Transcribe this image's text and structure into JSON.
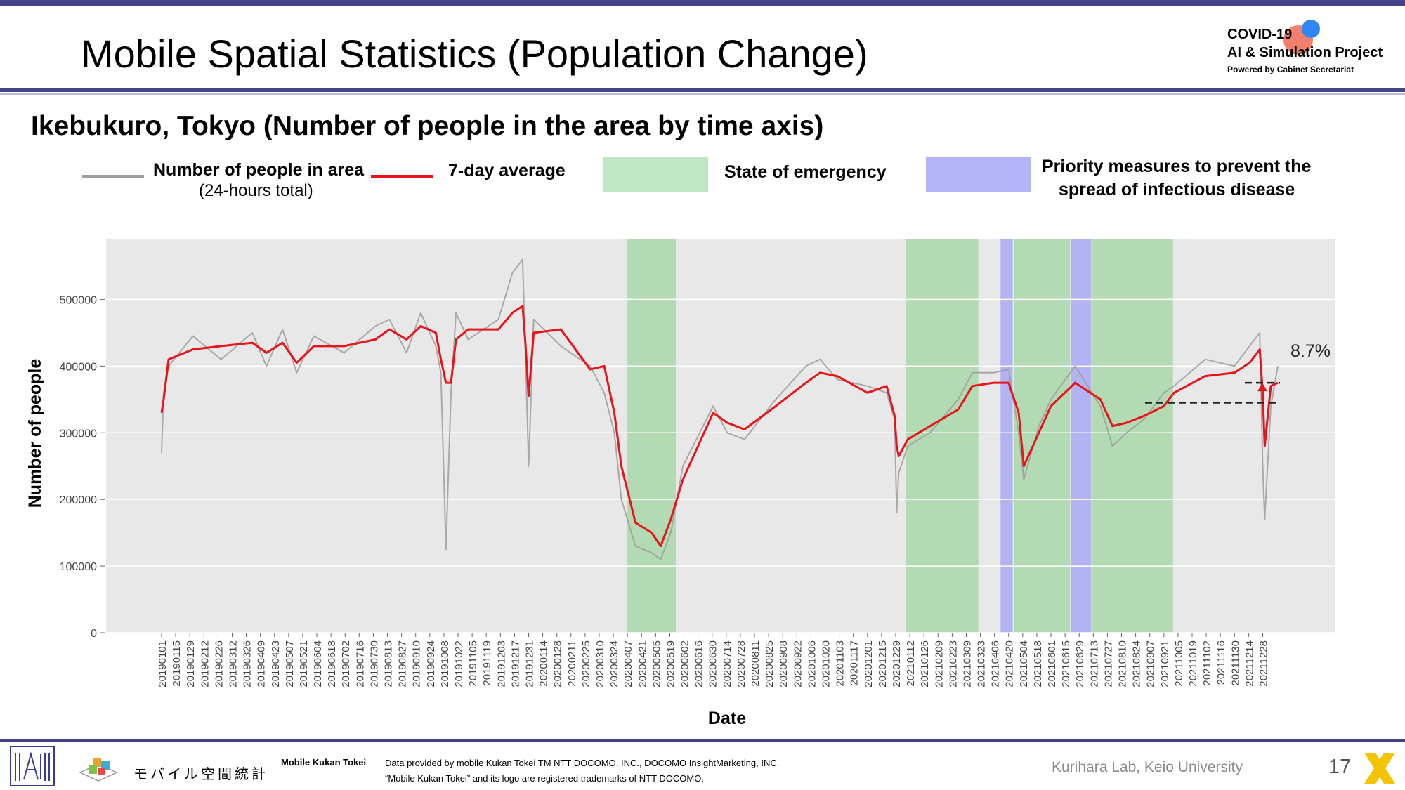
{
  "header": {
    "title": "Mobile Spatial Statistics (Population Change)",
    "logo_line1": "COVID-19",
    "logo_line2": "AI & Simulation Project",
    "logo_line3": "Powered by Cabinet Secretariat"
  },
  "subtitle": "Ikebukuro, Tokyo (Number of people in the area by time axis)",
  "legend": {
    "raw_label": "Number of people in area",
    "raw_sub": "(24-hours total)",
    "avg_label": "7-day average",
    "emergency_label": "State of emergency",
    "priority_label_1": "Priority measures to prevent the",
    "priority_label_2": "spread of infectious disease"
  },
  "colors": {
    "raw_line": "#9e9e9e",
    "avg_line": "#e8141b",
    "emergency": "#a9d8a9",
    "priority": "#a9a9f5",
    "plot_bg": "#e8e8e8",
    "accent": "#44438a"
  },
  "footer": {
    "kukan_logo_text": "モバイル空間統計",
    "kukan_title": "Mobile Kukan Tokei",
    "credit_1": "Data provided by mobile Kukan Tokei TM NTT DOCOMO, INC., DOCOMO InsightMarketing, INC.",
    "credit_2": "“Mobile Kukan Tokei” and its logo are registered trademarks of NTT DOCOMO.",
    "lab": "Kurihara Lab, Keio University",
    "page": "17"
  },
  "chart_data": {
    "type": "line",
    "xlabel": "Date",
    "ylabel": "Number of people",
    "ylim": [
      0,
      590000
    ],
    "yticks": [
      0,
      100000,
      200000,
      300000,
      400000,
      500000
    ],
    "ytick_labels": [
      "0",
      "100000",
      "200000",
      "300000",
      "400000",
      "500000"
    ],
    "x_range": [
      "20190101",
      "20220112"
    ],
    "x_tick_labels": [
      "20190101",
      "20190115",
      "20190129",
      "20190212",
      "20190226",
      "20190312",
      "20190326",
      "20190409",
      "20190423",
      "20190507",
      "20190521",
      "20190604",
      "20190618",
      "20190702",
      "20190716",
      "20190730",
      "20190813",
      "20190827",
      "20190910",
      "20190924",
      "20191008",
      "20191022",
      "20191105",
      "20191119",
      "20191203",
      "20191217",
      "20191231",
      "20200114",
      "20200128",
      "20200211",
      "20200225",
      "20200310",
      "20200324",
      "20200407",
      "20200421",
      "20200505",
      "20200519",
      "20200602",
      "20200616",
      "20200630",
      "20200714",
      "20200728",
      "20200811",
      "20200825",
      "20200908",
      "20200922",
      "20201006",
      "20201020",
      "20201103",
      "20201117",
      "20201201",
      "20201215",
      "20201229",
      "20210112",
      "20210126",
      "20210209",
      "20210223",
      "20210309",
      "20210323",
      "20210406",
      "20210420",
      "20210504",
      "20210518",
      "20210601",
      "20210615",
      "20210629",
      "20210713",
      "20210727",
      "20210810",
      "20210824",
      "20210907",
      "20210921",
      "20211005",
      "20211019",
      "20211102",
      "20211116",
      "20211130",
      "20211214",
      "20211228"
    ],
    "grid": true,
    "legend_position": "top",
    "series": [
      {
        "name": "7-day average",
        "x": [
          "20190101",
          "20190103",
          "20190108",
          "20190201",
          "20190301",
          "20190401",
          "20190415",
          "20190501",
          "20190515",
          "20190601",
          "20190701",
          "20190801",
          "20190815",
          "20190901",
          "20190915",
          "20190930",
          "20191005",
          "20191010",
          "20191015",
          "20191020",
          "20191101",
          "20191201",
          "20191215",
          "20191225",
          "20191228",
          "20191231",
          "20200105",
          "20200201",
          "20200301",
          "20200315",
          "20200325",
          "20200401",
          "20200415",
          "20200501",
          "20200510",
          "20200520",
          "20200601",
          "20200701",
          "20200715",
          "20200801",
          "20200901",
          "20201001",
          "20201015",
          "20201101",
          "20201201",
          "20201220",
          "20201228",
          "20201230",
          "20210101",
          "20210110",
          "20210201",
          "20210301",
          "20210315",
          "20210405",
          "20210420",
          "20210430",
          "20210505",
          "20210520",
          "20210601",
          "20210625",
          "20210720",
          "20210801",
          "20210815",
          "20210901",
          "20210921",
          "20211001",
          "20211101",
          "20211130",
          "20211215",
          "20211225",
          "20211228",
          "20211230",
          "20220105",
          "20220112"
        ],
        "values": [
          330000,
          350000,
          410000,
          425000,
          430000,
          435000,
          420000,
          435000,
          405000,
          430000,
          430000,
          440000,
          455000,
          440000,
          460000,
          450000,
          410000,
          375000,
          375000,
          440000,
          455000,
          455000,
          480000,
          490000,
          430000,
          355000,
          450000,
          455000,
          395000,
          400000,
          330000,
          250000,
          165000,
          150000,
          130000,
          170000,
          230000,
          330000,
          315000,
          305000,
          340000,
          375000,
          390000,
          385000,
          360000,
          370000,
          325000,
          280000,
          265000,
          290000,
          310000,
          335000,
          370000,
          375000,
          375000,
          330000,
          250000,
          300000,
          340000,
          375000,
          350000,
          310000,
          315000,
          325000,
          340000,
          360000,
          385000,
          390000,
          405000,
          425000,
          360000,
          280000,
          370000,
          375000
        ]
      },
      {
        "name": "Number of people in area",
        "x": [
          "20190101",
          "20190103",
          "20190108",
          "20190201",
          "20190301",
          "20190401",
          "20190415",
          "20190501",
          "20190515",
          "20190601",
          "20190701",
          "20190801",
          "20190815",
          "20190901",
          "20190915",
          "20190930",
          "20191005",
          "20191010",
          "20191015",
          "20191020",
          "20191101",
          "20191201",
          "20191215",
          "20191225",
          "20191228",
          "20191231",
          "20200105",
          "20200201",
          "20200301",
          "20200315",
          "20200325",
          "20200401",
          "20200415",
          "20200501",
          "20200510",
          "20200520",
          "20200601",
          "20200701",
          "20200715",
          "20200801",
          "20200901",
          "20201001",
          "20201015",
          "20201101",
          "20201201",
          "20201220",
          "20201228",
          "20201230",
          "20210101",
          "20210110",
          "20210201",
          "20210301",
          "20210315",
          "20210405",
          "20210420",
          "20210430",
          "20210505",
          "20210520",
          "20210601",
          "20210625",
          "20210720",
          "20210801",
          "20210815",
          "20210901",
          "20210921",
          "20211001",
          "20211101",
          "20211130",
          "20211215",
          "20211225",
          "20211228",
          "20211230",
          "20220105",
          "20220112"
        ],
        "values": [
          270000,
          360000,
          400000,
          445000,
          410000,
          450000,
          400000,
          455000,
          390000,
          445000,
          420000,
          460000,
          470000,
          420000,
          480000,
          430000,
          390000,
          125000,
          360000,
          480000,
          440000,
          470000,
          540000,
          560000,
          410000,
          250000,
          470000,
          430000,
          400000,
          360000,
          300000,
          200000,
          130000,
          120000,
          110000,
          150000,
          250000,
          340000,
          300000,
          290000,
          350000,
          400000,
          410000,
          380000,
          370000,
          360000,
          320000,
          180000,
          240000,
          280000,
          300000,
          350000,
          390000,
          390000,
          395000,
          300000,
          230000,
          310000,
          350000,
          400000,
          340000,
          280000,
          300000,
          320000,
          360000,
          370000,
          410000,
          400000,
          430000,
          450000,
          250000,
          170000,
          340000,
          400000
        ]
      }
    ],
    "emergency_periods": [
      [
        "20200407",
        "20200525"
      ],
      [
        "20210108",
        "20210321"
      ],
      [
        "20210425",
        "20210620"
      ],
      [
        "20210712",
        "20210930"
      ]
    ],
    "priority_periods": [
      [
        "20210412",
        "20210424"
      ],
      [
        "20210621",
        "20210711"
      ]
    ],
    "annotation": {
      "text": "8.7%",
      "low": 345000,
      "high": 375000
    }
  }
}
